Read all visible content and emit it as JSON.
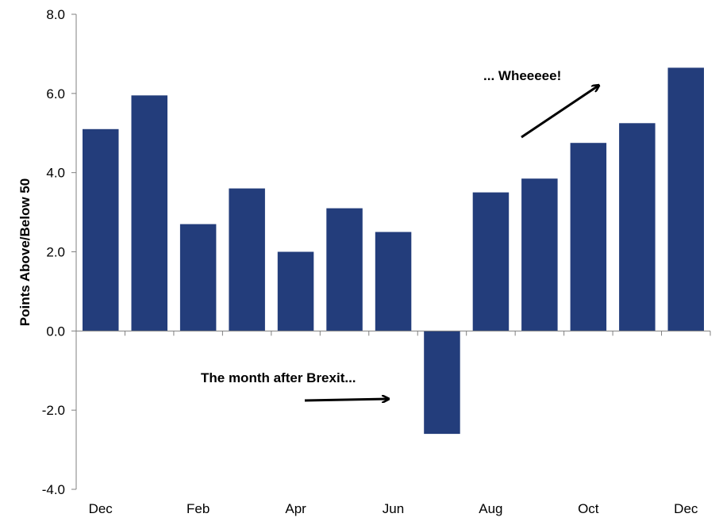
{
  "chart_data": {
    "type": "bar",
    "title": "",
    "xlabel": "",
    "ylabel": "Points Above/Below 50",
    "ylim": [
      -4,
      8
    ],
    "yticks": [
      -4,
      -2,
      0,
      2,
      4,
      6,
      8
    ],
    "ytick_labels": [
      "-4.0",
      "-2.0",
      "0.0",
      "2.0",
      "4.0",
      "6.0",
      "8.0"
    ],
    "categories": [
      "Dec",
      "",
      "Feb",
      "",
      "Apr",
      "",
      "Jun",
      "",
      "Aug",
      "",
      "Oct",
      "",
      "Dec"
    ],
    "values": [
      5.1,
      5.95,
      2.7,
      3.6,
      2.0,
      3.1,
      2.5,
      -2.6,
      3.5,
      3.85,
      4.75,
      5.25,
      6.65
    ],
    "bar_color": "#233d7b",
    "grid": false,
    "annotations": [
      {
        "text": "The month after Brexit...",
        "arrow_direction": "right"
      },
      {
        "text": "... Wheeeee!",
        "arrow_direction": "up-right"
      }
    ]
  }
}
